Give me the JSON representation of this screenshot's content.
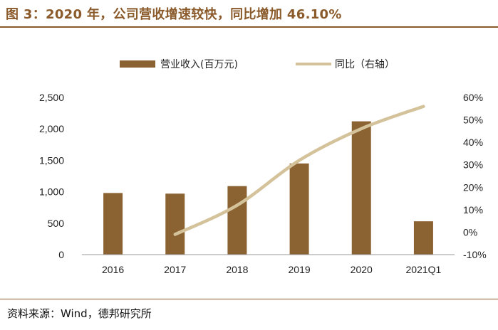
{
  "figure_title": "图 3：2020 年，公司营收增速较快，同比增加 46.10%",
  "source_note": "资料来源：Wind，德邦研究所",
  "colors": {
    "accent": "#8b5a2b",
    "bar": "#8b6232",
    "line": "#d4c29b"
  },
  "chart_data": {
    "type": "bar",
    "categories": [
      "2016",
      "2017",
      "2018",
      "2019",
      "2020",
      "2021Q1"
    ],
    "series": [
      {
        "name": "营业收入(百万元)",
        "type": "bar",
        "axis": "left",
        "values": [
          980,
          970,
          1090,
          1450,
          2120,
          530
        ]
      },
      {
        "name": "同比（右轴）",
        "type": "line",
        "axis": "right",
        "values": [
          null,
          -1,
          12,
          32,
          46.1,
          56
        ]
      }
    ],
    "y_left": {
      "ylim": [
        0,
        2500
      ],
      "ticks": [
        "0",
        "500",
        "1,000",
        "1,500",
        "2,000",
        "2,500"
      ]
    },
    "y_right": {
      "ylim": [
        -10,
        60
      ],
      "ticks": [
        "-10%",
        "0%",
        "10%",
        "20%",
        "30%",
        "40%",
        "50%",
        "60%"
      ]
    },
    "legend_position": "top-center",
    "grid": false
  }
}
